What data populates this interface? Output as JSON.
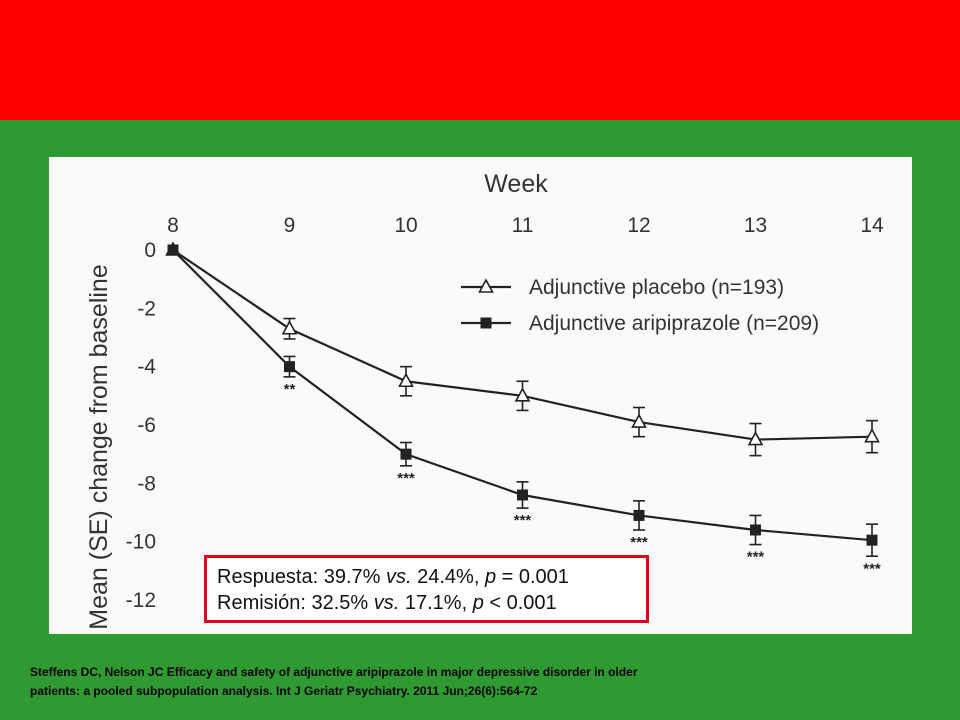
{
  "colors": {
    "banner": "#ff0000",
    "background": "#2e9a31",
    "box_border": "#e3001b",
    "panel": "#fafafa",
    "series": "#222222"
  },
  "chart_data": {
    "type": "line",
    "xlabel": "Week",
    "ylabel": "Mean (SE) change from baseline",
    "x": [
      8,
      9,
      10,
      11,
      12,
      13,
      14
    ],
    "x_ticks": [
      "8",
      "9",
      "10",
      "11",
      "12",
      "13",
      "14"
    ],
    "x_axis_position": "top",
    "ylim": [
      -12,
      0
    ],
    "y_ticks": [
      "0",
      "-2",
      "-4",
      "-6",
      "-8",
      "-10",
      "-12"
    ],
    "y_tick_values": [
      0,
      -2,
      -4,
      -6,
      -8,
      -10,
      -12
    ],
    "grid": false,
    "legend_position": "top-right",
    "series": [
      {
        "name": "Adjunctive placebo (n=193)",
        "marker": "open-triangle",
        "values": [
          0,
          -2.7,
          -4.5,
          -5.0,
          -5.9,
          -6.5,
          -6.4
        ],
        "se": [
          0,
          0.35,
          0.5,
          0.5,
          0.5,
          0.55,
          0.55
        ]
      },
      {
        "name": "Adjunctive aripiprazole (n=209)",
        "marker": "filled-square",
        "values": [
          0,
          -4.0,
          -7.0,
          -8.4,
          -9.1,
          -9.6,
          -9.95
        ],
        "se": [
          0,
          0.35,
          0.4,
          0.45,
          0.5,
          0.5,
          0.55
        ]
      }
    ],
    "significance": [
      {
        "x": 9,
        "label": "**"
      },
      {
        "x": 10,
        "label": "***"
      },
      {
        "x": 11,
        "label": "***"
      },
      {
        "x": 12,
        "label": "***"
      },
      {
        "x": 13,
        "label": "***"
      },
      {
        "x": 14,
        "label": "***"
      }
    ]
  },
  "results": {
    "response_label": "Respuesta: 39.7% ",
    "response_vs": "vs.",
    "response_values": " 24.4%, ",
    "response_p": "p",
    "response_p_value": " = 0.001",
    "remission_label": "Remisión: 32.5% ",
    "remission_vs": "vs.",
    "remission_values": " 17.1%, ",
    "remission_p": "p",
    "remission_p_value": " < 0.001"
  },
  "citation": {
    "line1": "Steffens DC, Nelson JC Efficacy and safety of adjunctive aripiprazole in major depressive disorder in older",
    "line2": "patients: a pooled subpopulation analysis. Int J Geriatr Psychiatry. 2011 Jun;26(6):564-72"
  }
}
